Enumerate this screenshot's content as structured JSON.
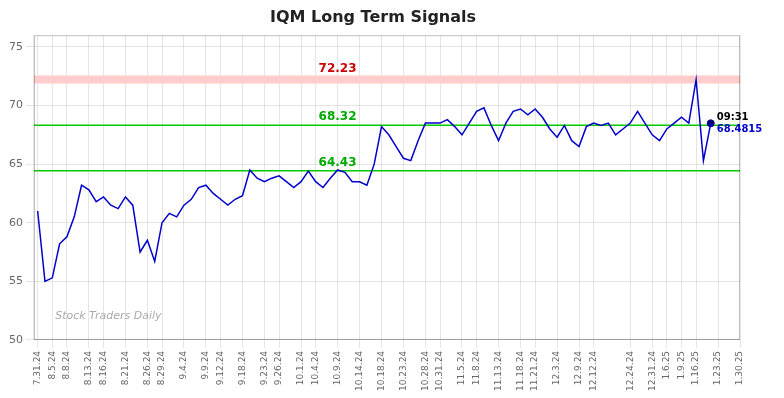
{
  "chart_data": {
    "type": "line",
    "title": "IQM Long Term Signals",
    "watermark": "Stock Traders Daily",
    "color": "#0000cc",
    "grid": true,
    "x": [
      0,
      1,
      2,
      3,
      4,
      5,
      6,
      7,
      8,
      9,
      10,
      11,
      12,
      13,
      14,
      15,
      16,
      17,
      18,
      19,
      20,
      21,
      22,
      23,
      24,
      25,
      26,
      27,
      28,
      29,
      30,
      31,
      32,
      33,
      34,
      35,
      36,
      37,
      38,
      39,
      40,
      41,
      42,
      43,
      44,
      45,
      46,
      47,
      48,
      49,
      50,
      51,
      52,
      53,
      54,
      55,
      56,
      57,
      58,
      59,
      60,
      61,
      62,
      63,
      64,
      65,
      66,
      67,
      68,
      69,
      70,
      71,
      72,
      73,
      74,
      75,
      76,
      77,
      78,
      79,
      80,
      81,
      82,
      83,
      84,
      85,
      86,
      87,
      88,
      89,
      90,
      91,
      92
    ],
    "values": [
      61.0,
      55.0,
      55.3,
      58.2,
      58.8,
      60.5,
      63.2,
      62.8,
      61.8,
      62.2,
      61.5,
      61.2,
      62.2,
      61.5,
      57.5,
      58.5,
      56.7,
      60.0,
      60.8,
      60.5,
      61.5,
      62.0,
      63.0,
      63.2,
      62.5,
      62.0,
      61.5,
      62.0,
      62.3,
      64.5,
      63.8,
      63.5,
      63.8,
      64.0,
      63.5,
      63.0,
      63.5,
      64.4,
      63.5,
      63.0,
      63.8,
      64.5,
      64.3,
      63.5,
      63.5,
      63.2,
      65.0,
      68.2,
      67.5,
      66.5,
      65.5,
      65.3,
      67.0,
      68.5,
      68.5,
      68.5,
      68.8,
      68.2,
      67.5,
      68.5,
      69.5,
      69.8,
      68.3,
      67.0,
      68.5,
      69.5,
      69.7,
      69.2,
      69.7,
      69.0,
      68.0,
      67.3,
      68.3,
      67.0,
      66.5,
      68.2,
      68.5,
      68.3,
      68.5,
      67.5,
      68.0,
      68.5,
      69.5,
      68.5,
      67.5,
      67.0,
      68.0,
      68.5,
      69.0,
      68.5,
      72.2,
      65.3,
      68.4815
    ],
    "xlim": [
      -0.5,
      96
    ],
    "xticks": [
      {
        "value": 0,
        "label": "7.31.24"
      },
      {
        "value": 2,
        "label": "8.5.24"
      },
      {
        "value": 4,
        "label": "8.8.24"
      },
      {
        "value": 7,
        "label": "8.13.24"
      },
      {
        "value": 9,
        "label": "8.16.24"
      },
      {
        "value": 12,
        "label": "8.21.24"
      },
      {
        "value": 15,
        "label": "8.26.24"
      },
      {
        "value": 17,
        "label": "8.29.24"
      },
      {
        "value": 20,
        "label": "9.4.24"
      },
      {
        "value": 23,
        "label": "9.9.24"
      },
      {
        "value": 25,
        "label": "9.12.24"
      },
      {
        "value": 28,
        "label": "9.18.24"
      },
      {
        "value": 31,
        "label": "9.23.24"
      },
      {
        "value": 33,
        "label": "9.26.24"
      },
      {
        "value": 36,
        "label": "10.1.24"
      },
      {
        "value": 38,
        "label": "10.4.24"
      },
      {
        "value": 41,
        "label": "10.9.24"
      },
      {
        "value": 44,
        "label": "10.14.24"
      },
      {
        "value": 47,
        "label": "10.18.24"
      },
      {
        "value": 50,
        "label": "10.23.24"
      },
      {
        "value": 53,
        "label": "10.28.24"
      },
      {
        "value": 55,
        "label": "10.31.24"
      },
      {
        "value": 58,
        "label": "11.5.24"
      },
      {
        "value": 60,
        "label": "11.8.24"
      },
      {
        "value": 63,
        "label": "11.13.24"
      },
      {
        "value": 66,
        "label": "11.18.24"
      },
      {
        "value": 68,
        "label": "11.21.24"
      },
      {
        "value": 71,
        "label": "12.3.24"
      },
      {
        "value": 74,
        "label": "12.9.24"
      },
      {
        "value": 76,
        "label": "12.12.24"
      },
      {
        "value": 81,
        "label": "12.24.24"
      },
      {
        "value": 84,
        "label": "12.31.24"
      },
      {
        "value": 86,
        "label": "1.6.25"
      },
      {
        "value": 88,
        "label": "1.9.25"
      },
      {
        "value": 90,
        "label": "1.16.25"
      },
      {
        "value": 93,
        "label": "1.23.25"
      },
      {
        "value": 96,
        "label": "1.30.25"
      }
    ],
    "ylim": [
      50,
      76
    ],
    "yticks": [
      50,
      55,
      60,
      65,
      70,
      75
    ],
    "reference_lines": [
      {
        "value": 72.23,
        "label": "72.23",
        "color": "#ffcccc",
        "label_color": "#cc0000"
      },
      {
        "value": 68.32,
        "label": "68.32",
        "color": "#00cc00",
        "label_color": "#00aa00"
      },
      {
        "value": 64.43,
        "label": "64.43",
        "color": "#00cc00",
        "label_color": "#00aa00"
      }
    ],
    "annotations": [
      {
        "x": 92,
        "y": 68.4815,
        "dot_color": "#000080",
        "lines": [
          {
            "text": "09:31",
            "color": "#000000"
          },
          {
            "text": "68.4815",
            "color": "#0000cc"
          }
        ]
      }
    ]
  }
}
